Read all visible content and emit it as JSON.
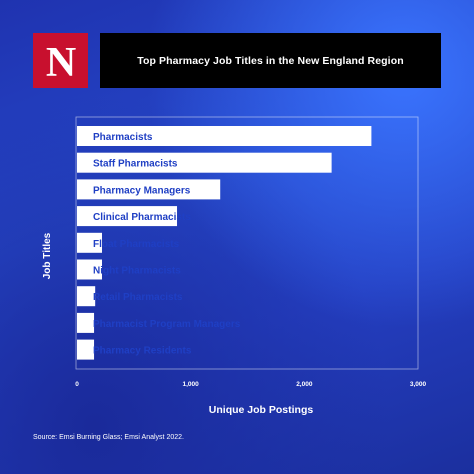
{
  "brand": {
    "logo_letter": "N",
    "logo_color": "#c8102e"
  },
  "chart_data": {
    "type": "bar",
    "orientation": "horizontal",
    "title": "Top Pharmacy Job Titles in the New England Region",
    "xlabel": "Unique Job Postings",
    "ylabel": "Job Titles",
    "categories": [
      "Pharmacists",
      "Staff Pharmacists",
      "Pharmacy Managers",
      "Clinical Pharmacists",
      "Float Pharmacists",
      "Night Pharmacists",
      "Retail Pharmacists",
      "Pharmacist Program Managers",
      "Pharmacy Residents"
    ],
    "values": [
      2590,
      2240,
      1260,
      880,
      220,
      220,
      160,
      150,
      150
    ],
    "xlim": [
      0,
      3000
    ],
    "xticks": [
      0,
      1000,
      2000,
      3000
    ],
    "xtick_labels": [
      "0",
      "1,000",
      "2,000",
      "3,000"
    ],
    "grid": false,
    "bar_color": "#ffffff",
    "label_color": "#1f3fc4"
  },
  "source_note": "Source: Emsi Burning Glass; Emsi Analyst 2022."
}
